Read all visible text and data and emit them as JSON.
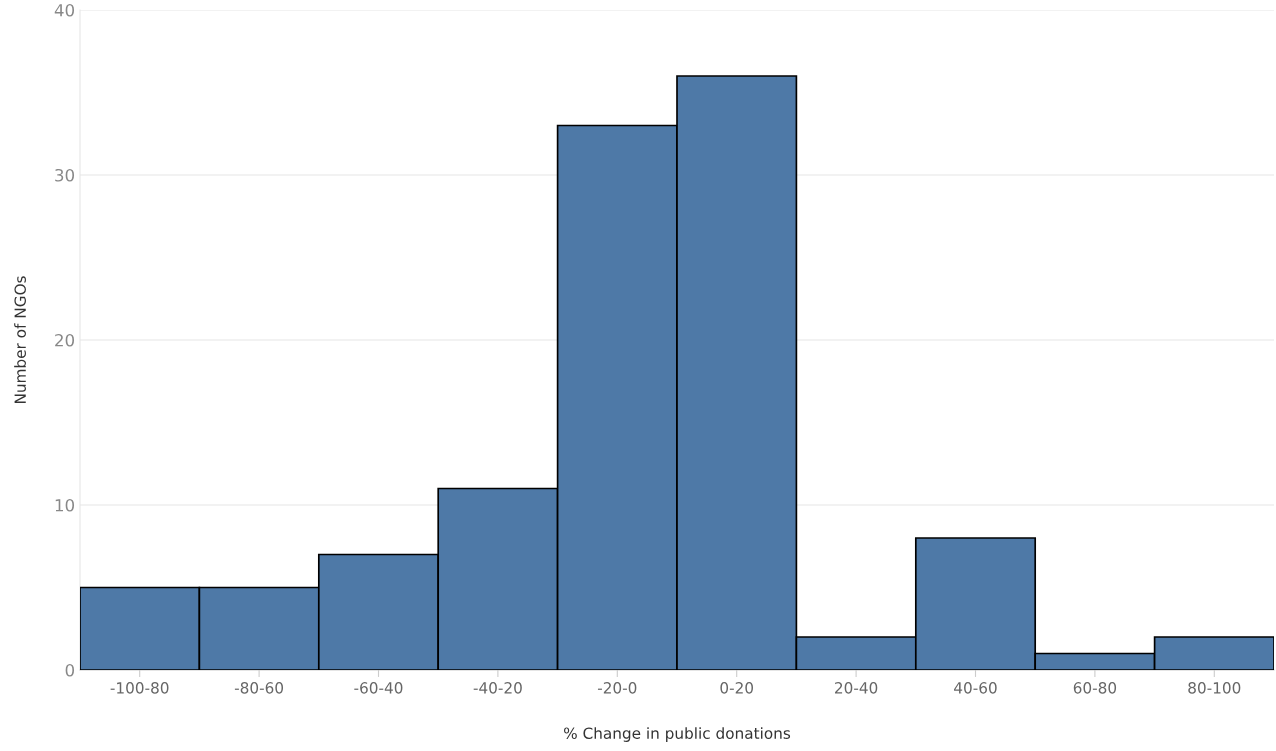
{
  "chart_data": {
    "type": "bar",
    "xlabel": "% Change in public donations",
    "ylabel": "Number of NGOs",
    "categories": [
      "-100-80",
      "-80-60",
      "-60-40",
      "-40-20",
      "-20-0",
      "0-20",
      "20-40",
      "40-60",
      "60-80",
      "80-100"
    ],
    "values": [
      5,
      5,
      7,
      11,
      33,
      36,
      2,
      8,
      1,
      2
    ],
    "color": "#4e79a7",
    "ylim": [
      0,
      40
    ],
    "yticks": [
      0,
      10,
      20,
      30,
      40
    ],
    "grid": "y"
  }
}
